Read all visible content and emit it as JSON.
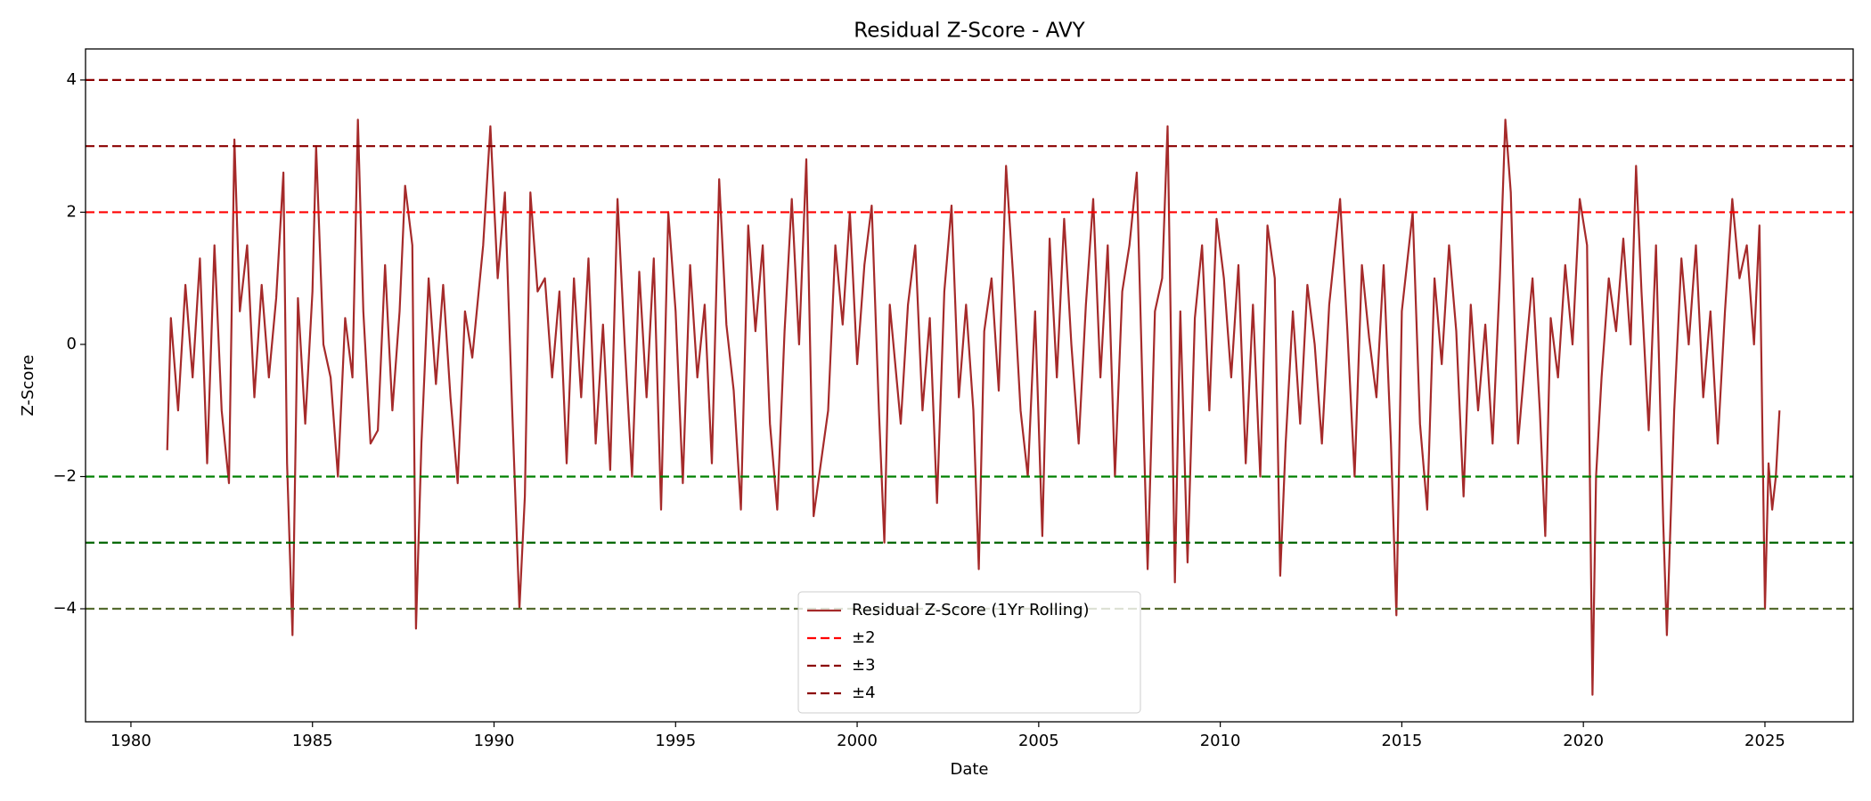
{
  "chart_data": {
    "type": "line",
    "title": "Residual Z-Score - AVY",
    "xlabel": "Date",
    "ylabel": "Z-Score",
    "xlim": [
      1978.75,
      2027.43
    ],
    "xticks": [
      1980,
      1985,
      1990,
      1995,
      2000,
      2005,
      2010,
      2015,
      2020,
      2025
    ],
    "ylim": [
      -5.71,
      4.47
    ],
    "yticks": [
      {
        "value": -4,
        "label": "−4"
      },
      {
        "value": -2,
        "label": "−2"
      },
      0,
      2,
      4
    ],
    "legend": "lower center",
    "grid": false,
    "x": [
      1981.0,
      1981.1,
      1981.3,
      1981.5,
      1981.7,
      1981.9,
      1982.1,
      1982.3,
      1982.5,
      1982.7,
      1982.85,
      1983.0,
      1983.2,
      1983.4,
      1983.6,
      1983.8,
      1984.0,
      1984.2,
      1984.3,
      1984.45,
      1984.6,
      1984.8,
      1985.0,
      1985.1,
      1985.3,
      1985.5,
      1985.7,
      1985.9,
      1986.1,
      1986.25,
      1986.4,
      1986.6,
      1986.8,
      1987.0,
      1987.2,
      1987.4,
      1987.55,
      1987.75,
      1987.85,
      1988.0,
      1988.2,
      1988.4,
      1988.6,
      1988.8,
      1989.0,
      1989.2,
      1989.4,
      1989.7,
      1989.9,
      1990.1,
      1990.3,
      1990.5,
      1990.7,
      1990.85,
      1991.0,
      1991.2,
      1991.4,
      1991.6,
      1991.8,
      1992.0,
      1992.2,
      1992.4,
      1992.6,
      1992.8,
      1993.0,
      1993.2,
      1993.4,
      1993.6,
      1993.8,
      1994.0,
      1994.2,
      1994.4,
      1994.6,
      1994.8,
      1995.0,
      1995.2,
      1995.4,
      1995.6,
      1995.8,
      1996.0,
      1996.2,
      1996.4,
      1996.6,
      1996.8,
      1997.0,
      1997.2,
      1997.4,
      1997.6,
      1997.8,
      1998.0,
      1998.2,
      1998.4,
      1998.6,
      1998.8,
      1999.0,
      1999.2,
      1999.4,
      1999.6,
      1999.8,
      2000.0,
      2000.2,
      2000.4,
      2000.6,
      2000.75,
      2000.9,
      2001.2,
      2001.4,
      2001.6,
      2001.8,
      2002.0,
      2002.2,
      2002.4,
      2002.6,
      2002.8,
      2003.0,
      2003.2,
      2003.35,
      2003.5,
      2003.7,
      2003.9,
      2004.1,
      2004.3,
      2004.5,
      2004.7,
      2004.9,
      2005.1,
      2005.3,
      2005.5,
      2005.7,
      2005.9,
      2006.1,
      2006.3,
      2006.5,
      2006.7,
      2006.9,
      2007.1,
      2007.3,
      2007.5,
      2007.7,
      2007.9,
      2008.0,
      2008.2,
      2008.4,
      2008.55,
      2008.75,
      2008.9,
      2009.1,
      2009.3,
      2009.5,
      2009.7,
      2009.9,
      2010.1,
      2010.3,
      2010.5,
      2010.7,
      2010.9,
      2011.1,
      2011.3,
      2011.5,
      2011.65,
      2011.8,
      2012.0,
      2012.2,
      2012.4,
      2012.6,
      2012.8,
      2013.0,
      2013.3,
      2013.5,
      2013.7,
      2013.9,
      2014.1,
      2014.3,
      2014.5,
      2014.7,
      2014.85,
      2015.0,
      2015.3,
      2015.5,
      2015.7,
      2015.9,
      2016.1,
      2016.3,
      2016.5,
      2016.7,
      2016.9,
      2017.1,
      2017.3,
      2017.5,
      2017.7,
      2017.85,
      2018.0,
      2018.2,
      2018.4,
      2018.6,
      2018.8,
      2018.95,
      2019.1,
      2019.3,
      2019.5,
      2019.7,
      2019.9,
      2020.1,
      2020.25,
      2020.35,
      2020.5,
      2020.7,
      2020.9,
      2021.1,
      2021.3,
      2021.45,
      2021.6,
      2021.8,
      2022.0,
      2022.2,
      2022.3,
      2022.5,
      2022.7,
      2022.9,
      2023.1,
      2023.3,
      2023.5,
      2023.7,
      2023.9,
      2024.1,
      2024.3,
      2024.5,
      2024.7,
      2024.85,
      2025.0,
      2025.1,
      2025.2,
      2025.3,
      2025.4
    ],
    "series": [
      {
        "name": "Residual Z-Score (1Yr Rolling)",
        "color": "#a52a2a",
        "values": [
          -1.6,
          0.4,
          -1.0,
          0.9,
          -0.5,
          1.3,
          -1.8,
          1.5,
          -1.0,
          -2.1,
          3.1,
          0.5,
          1.5,
          -0.8,
          0.9,
          -0.5,
          0.7,
          2.6,
          -1.8,
          -4.4,
          0.7,
          -1.2,
          0.8,
          3.0,
          0.0,
          -0.5,
          -2.0,
          0.4,
          -0.5,
          3.4,
          0.5,
          -1.5,
          -1.3,
          1.2,
          -1.0,
          0.5,
          2.4,
          1.5,
          -4.3,
          -1.5,
          1.0,
          -0.6,
          0.9,
          -0.8,
          -2.1,
          0.5,
          -0.2,
          1.5,
          3.3,
          1.0,
          2.3,
          -1.0,
          -4.0,
          -2.3,
          2.3,
          0.8,
          1.0,
          -0.5,
          0.8,
          -1.8,
          1.0,
          -0.8,
          1.3,
          -1.5,
          0.3,
          -1.9,
          2.2,
          0.0,
          -2.0,
          1.1,
          -0.8,
          1.3,
          -2.5,
          2.0,
          0.5,
          -2.1,
          1.2,
          -0.5,
          0.6,
          -1.8,
          2.5,
          0.3,
          -0.7,
          -2.5,
          1.8,
          0.2,
          1.5,
          -1.2,
          -2.5,
          0.2,
          2.2,
          0.0,
          2.8,
          -2.6,
          -1.8,
          -1.0,
          1.5,
          0.3,
          2.0,
          -0.3,
          1.2,
          2.1,
          -1.0,
          -3.0,
          0.6,
          -1.2,
          0.6,
          1.5,
          -1.0,
          0.4,
          -2.4,
          0.8,
          2.1,
          -0.8,
          0.6,
          -1.0,
          -3.4,
          0.2,
          1.0,
          -0.7,
          2.7,
          1.0,
          -1.0,
          -2.0,
          0.5,
          -2.9,
          1.6,
          -0.5,
          1.9,
          0.0,
          -1.5,
          0.6,
          2.2,
          -0.5,
          1.5,
          -2.0,
          0.8,
          1.5,
          2.6,
          -1.5,
          -3.4,
          0.5,
          1.0,
          3.3,
          -3.6,
          0.5,
          -3.3,
          0.4,
          1.5,
          -1.0,
          1.9,
          1.0,
          -0.5,
          1.2,
          -1.8,
          0.6,
          -2.0,
          1.8,
          1.0,
          -3.5,
          -1.5,
          0.5,
          -1.2,
          0.9,
          0.0,
          -1.5,
          0.6,
          2.2,
          0.2,
          -2.0,
          1.2,
          0.1,
          -0.8,
          1.2,
          -1.5,
          -4.1,
          0.5,
          2.0,
          -1.2,
          -2.5,
          1.0,
          -0.3,
          1.5,
          0.2,
          -2.3,
          0.6,
          -1.0,
          0.3,
          -1.5,
          1.0,
          3.4,
          2.3,
          -1.5,
          -0.2,
          1.0,
          -1.0,
          -2.9,
          0.4,
          -0.5,
          1.2,
          0.0,
          2.2,
          1.5,
          -5.3,
          -2.0,
          -0.5,
          1.0,
          0.2,
          1.6,
          0.0,
          2.7,
          0.8,
          -1.3,
          1.5,
          -2.7,
          -4.4,
          -1.0,
          1.3,
          0.0,
          1.5,
          -0.8,
          0.5,
          -1.5,
          0.5,
          2.2,
          1.0,
          1.5,
          0.0,
          1.8,
          -4.0,
          -1.8,
          -2.5,
          -2.0,
          -1.0
        ]
      }
    ],
    "thresholds": [
      {
        "name": "±2",
        "upper": 2,
        "lower": -2,
        "color": "#ff0000",
        "lower_color": "#008000"
      },
      {
        "name": "±3",
        "upper": 3,
        "lower": -3,
        "color": "#8b0000",
        "lower_color": "#006400"
      },
      {
        "name": "±4",
        "upper": 4,
        "lower": -4,
        "color": "#8b0000",
        "lower_color": "#556b2f"
      }
    ]
  }
}
